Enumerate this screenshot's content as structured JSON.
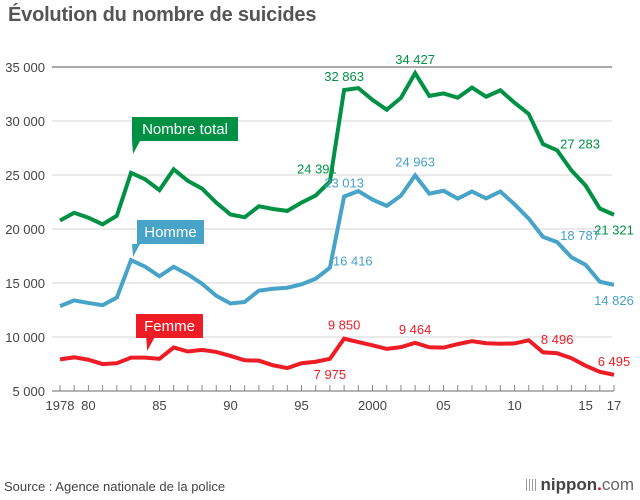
{
  "title": "Évolution du nombre de suicides",
  "source": "Source : Agence nationale de la police",
  "logo": {
    "name": "nippon",
    "dot": ".",
    "tld": "com"
  },
  "colors": {
    "total": "#009144",
    "homme": "#47a3c8",
    "femme": "#ee1c25",
    "grid": "#dddddd",
    "axis": "#888888",
    "tick_text": "#444444"
  },
  "chart_data": {
    "type": "line",
    "title": "Évolution du nombre de suicides",
    "xlabel": "",
    "ylabel": "",
    "ylim": [
      5000,
      35000
    ],
    "xlim": [
      1978,
      2017
    ],
    "grid": true,
    "yticks": [
      5000,
      10000,
      15000,
      20000,
      25000,
      30000,
      35000
    ],
    "ytick_labels": [
      "5 000",
      "10 000",
      "15 000",
      "20 000",
      "25 000",
      "30 000",
      "35 000"
    ],
    "xticks": [
      1978,
      1980,
      1985,
      1990,
      1995,
      2000,
      2005,
      2010,
      2015,
      2017
    ],
    "xtick_labels": [
      "1978",
      "80",
      "85",
      "90",
      "95",
      "2000",
      "05",
      "10",
      "15",
      "17"
    ],
    "x": [
      1978,
      1979,
      1980,
      1981,
      1982,
      1983,
      1984,
      1985,
      1986,
      1987,
      1988,
      1989,
      1990,
      1991,
      1992,
      1993,
      1994,
      1995,
      1996,
      1997,
      1998,
      1999,
      2000,
      2001,
      2002,
      2003,
      2004,
      2005,
      2006,
      2007,
      2008,
      2009,
      2010,
      2011,
      2012,
      2013,
      2014,
      2015,
      2016,
      2017
    ],
    "series": [
      {
        "name": "Nombre total",
        "key": "total",
        "values": [
          20788,
          21503,
          21048,
          20434,
          21228,
          25202,
          24596,
          23599,
          25524,
          24460,
          23742,
          22436,
          21346,
          21084,
          22104,
          21851,
          21679,
          22445,
          23104,
          24391,
          32863,
          33048,
          31957,
          31042,
          32143,
          34427,
          32325,
          32552,
          32155,
          33093,
          32249,
          32845,
          31690,
          30651,
          27858,
          27283,
          25427,
          24025,
          21897,
          21321
        ],
        "labels": [
          {
            "year": 1997,
            "text": "24 391",
            "pos": "above-left"
          },
          {
            "year": 1998,
            "text": "32 863",
            "pos": "above"
          },
          {
            "year": 2003,
            "text": "34 427",
            "pos": "above"
          },
          {
            "year": 2013,
            "text": "27 283",
            "pos": "right"
          },
          {
            "year": 2017,
            "text": "21 321",
            "pos": "below"
          }
        ]
      },
      {
        "name": "Homme",
        "key": "homme",
        "values": [
          12859,
          13386,
          13155,
          12942,
          13654,
          17116,
          16508,
          15624,
          16497,
          15802,
          14934,
          13818,
          13102,
          13242,
          14296,
          14468,
          14560,
          14874,
          15393,
          16416,
          23013,
          23512,
          22727,
          22144,
          23080,
          24963,
          23272,
          23540,
          22813,
          23478,
          22831,
          23472,
          22283,
          20955,
          19273,
          18787,
          17386,
          16681,
          15121,
          14826
        ],
        "labels": [
          {
            "year": 1997,
            "text": "16 416",
            "pos": "right"
          },
          {
            "year": 1998,
            "text": "23 013",
            "pos": "above"
          },
          {
            "year": 2003,
            "text": "24 963",
            "pos": "above"
          },
          {
            "year": 2013,
            "text": "18 787",
            "pos": "right"
          },
          {
            "year": 2017,
            "text": "14 826",
            "pos": "below"
          }
        ]
      },
      {
        "name": "Femme",
        "key": "femme",
        "values": [
          7929,
          8117,
          7893,
          7492,
          7574,
          8086,
          8088,
          7975,
          9027,
          8658,
          8808,
          8618,
          8244,
          7842,
          7808,
          7383,
          7119,
          7571,
          7711,
          7975,
          9850,
          9536,
          9230,
          8898,
          9063,
          9464,
          9053,
          9012,
          9342,
          9615,
          9418,
          9373,
          9407,
          9696,
          8585,
          8496,
          8041,
          7344,
          6776,
          6495
        ],
        "labels": [
          {
            "year": 1997,
            "text": "7 975",
            "pos": "below"
          },
          {
            "year": 1998,
            "text": "9 850",
            "pos": "above"
          },
          {
            "year": 2003,
            "text": "9 464",
            "pos": "above"
          },
          {
            "year": 2013,
            "text": "8 496",
            "pos": "above"
          },
          {
            "year": 2017,
            "text": "6 495",
            "pos": "above"
          }
        ]
      }
    ],
    "legend": [
      {
        "series": "Nombre total",
        "text": "Nombre total",
        "placement": "callout",
        "year": 1983
      },
      {
        "series": "Homme",
        "text": "Homme",
        "placement": "callout",
        "year": 1983
      },
      {
        "series": "Femme",
        "text": "Femme",
        "placement": "callout",
        "year": 1984
      }
    ]
  }
}
